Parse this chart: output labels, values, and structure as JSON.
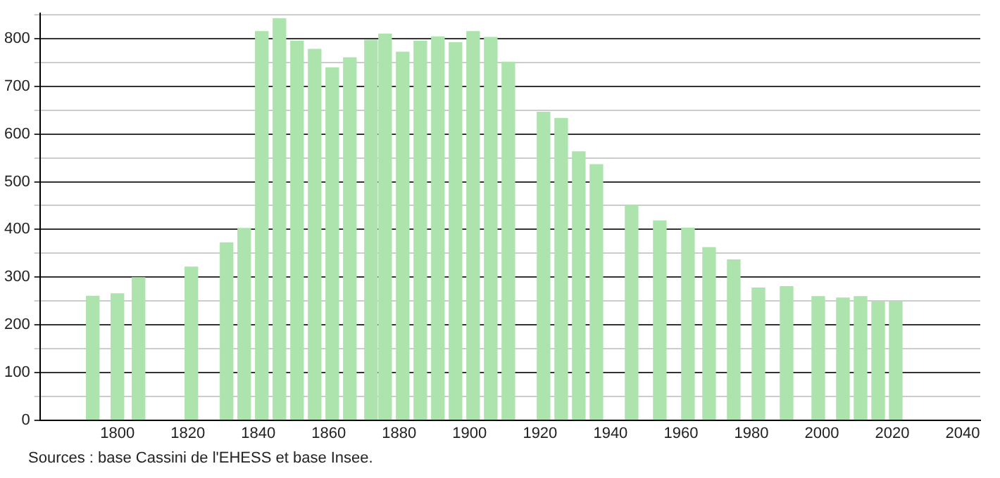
{
  "chart_data": {
    "type": "bar",
    "x": [
      1793,
      1800,
      1806,
      1821,
      1831,
      1836,
      1841,
      1846,
      1851,
      1856,
      1861,
      1866,
      1872,
      1876,
      1881,
      1886,
      1891,
      1896,
      1901,
      1906,
      1911,
      1921,
      1926,
      1931,
      1936,
      1946,
      1954,
      1962,
      1968,
      1975,
      1982,
      1990,
      1999,
      2006,
      2011,
      2016,
      2021
    ],
    "values": [
      260,
      265,
      299,
      321,
      372,
      402,
      815,
      842,
      795,
      778,
      739,
      760,
      797,
      810,
      772,
      795,
      804,
      792,
      815,
      803,
      751,
      646,
      633,
      563,
      536,
      450,
      418,
      403,
      362,
      336,
      277,
      280,
      259,
      256,
      259,
      248,
      248
    ],
    "color": "#ade3ad",
    "xlim": [
      1778,
      2045
    ],
    "xticks": [
      1800,
      1820,
      1840,
      1860,
      1880,
      1900,
      1920,
      1940,
      1960,
      1980,
      2000,
      2020,
      2040
    ],
    "ylim": [
      0,
      853
    ],
    "yticks": [
      0,
      {
        "value": 50,
        "label": null
      },
      100,
      {
        "value": 150,
        "label": null
      },
      200,
      {
        "value": 250,
        "label": null
      },
      300,
      {
        "value": 350,
        "label": null
      },
      400,
      {
        "value": 450,
        "label": null
      },
      500,
      {
        "value": 550,
        "label": null
      },
      600,
      {
        "value": 650,
        "label": null
      },
      700,
      {
        "value": 750,
        "label": null
      },
      800,
      {
        "value": 850,
        "label": null
      }
    ],
    "grid": "y",
    "legend": false,
    "annotations": [
      "Sources : base Cassini de l'EHESS et base Insee."
    ]
  }
}
